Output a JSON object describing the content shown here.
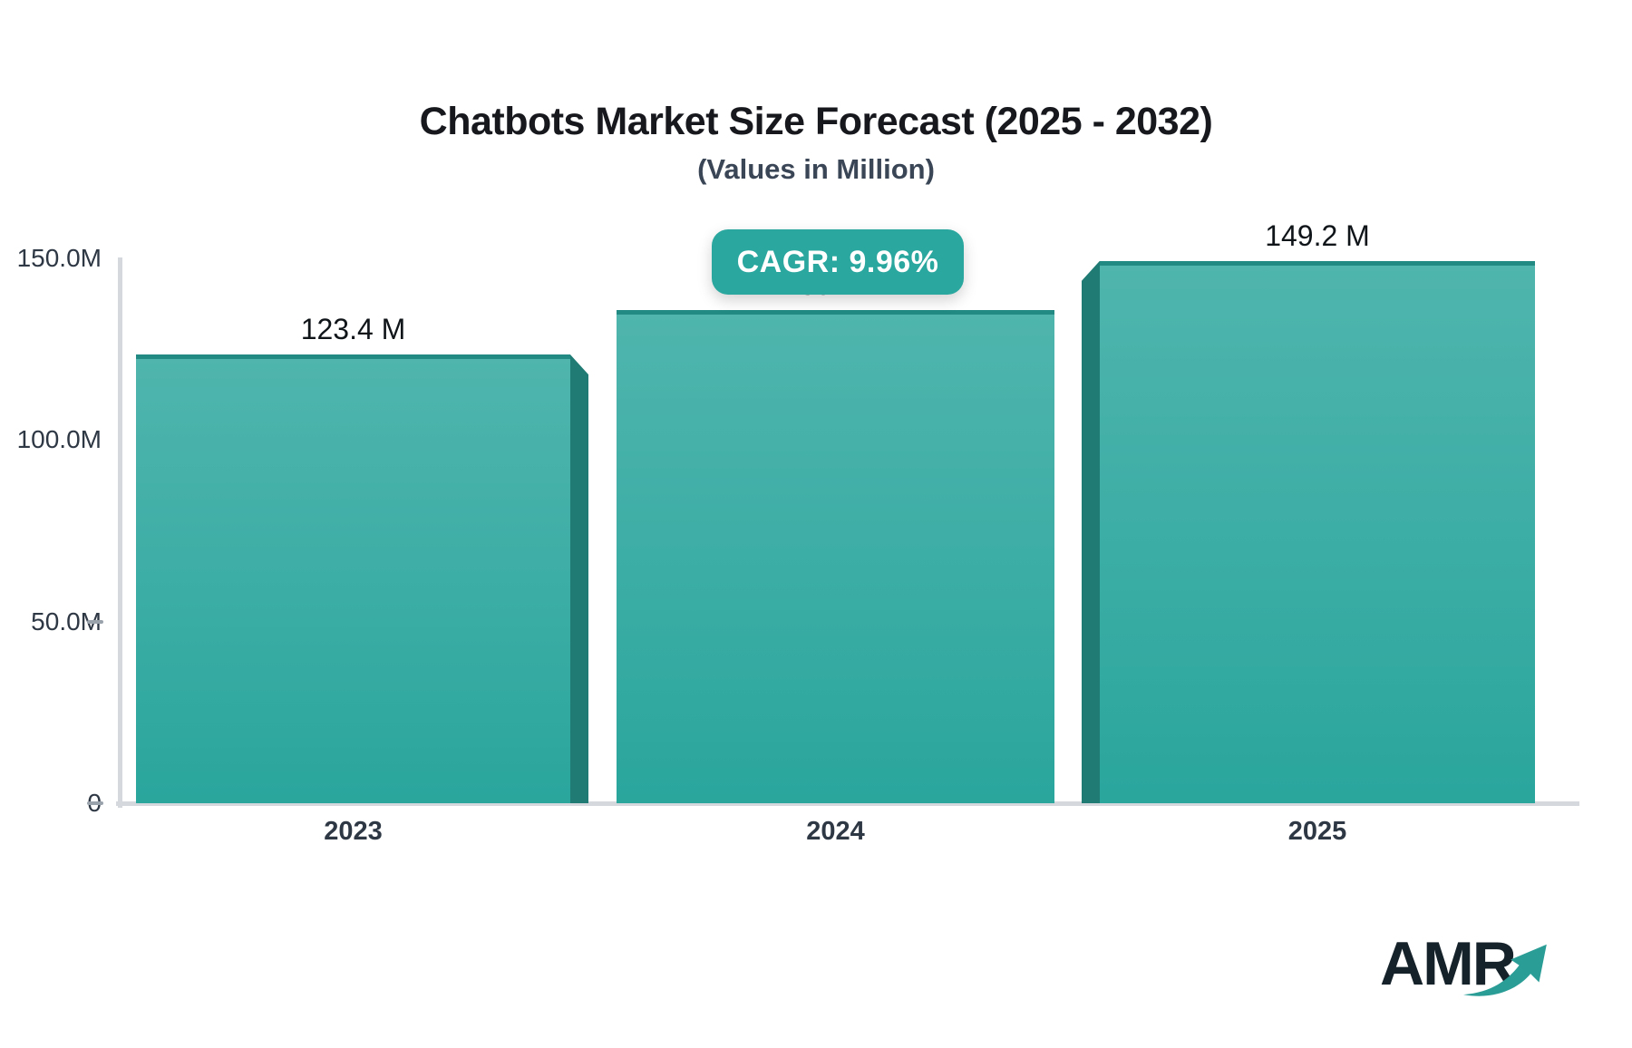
{
  "badge": {
    "label": "CAGR: 9.96%"
  },
  "logo": {
    "text": "AMR",
    "arrow_icon": "trending-up-arrow-icon"
  },
  "colors": {
    "title": "#16181d",
    "subtitle": "#3a4556",
    "axis": "#d5d8dd",
    "tick": "#9aa2ac",
    "axis_label": "#2e3744",
    "value_label": "#10151a",
    "bar_top": "#4fb5ad",
    "bar_bottom": "#2aa69d",
    "bar_edge": "#228a83",
    "bar_side": "#1f7b73",
    "badge_bg": "#2aa79e",
    "badge_text": "#ffffff",
    "logo_text": "#15222a",
    "logo_arrow": "#2a9d96"
  },
  "chart_data": {
    "type": "bar",
    "title": "Chatbots Market Size Forecast (2025 - 2032)",
    "subtitle": "(Values in Million)",
    "categories": [
      "2023",
      "2024",
      "2025"
    ],
    "values": [
      123.4,
      135.7,
      149.2
    ],
    "value_labels": [
      "123.4 M",
      "135.7 M",
      "149.2 M"
    ],
    "unit": "Million",
    "cagr": "9.96%",
    "xlabel": "",
    "ylabel": "",
    "ylim": [
      0,
      155
    ],
    "yticks": [
      {
        "label": "150.0M",
        "value": 150,
        "tick": false
      },
      {
        "label": "100.0M",
        "value": 100,
        "tick": false
      },
      {
        "label": "50.0M",
        "value": 50,
        "tick": true
      },
      {
        "label": "0",
        "value": 0,
        "tick": true
      }
    ],
    "grid": false,
    "legend": "none",
    "bar_style": "3d-extruded, vertical gradient teal"
  }
}
